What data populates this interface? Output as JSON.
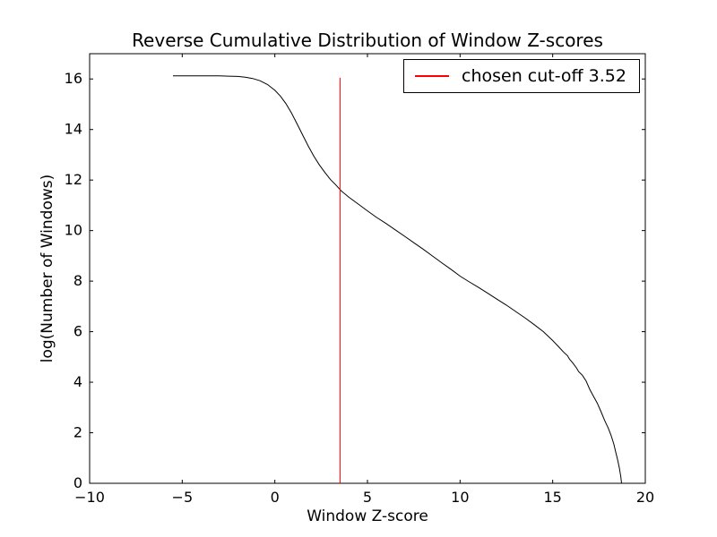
{
  "figure": {
    "background": "#ffffff"
  },
  "chart_data": {
    "type": "line",
    "title": "Reverse Cumulative Distribution of Window Z-scores",
    "xlabel": "Window Z-score",
    "ylabel": "log(Number of Windows)",
    "xlim": [
      -10,
      20
    ],
    "ylim": [
      0,
      17
    ],
    "xticks": [
      -10,
      -5,
      0,
      5,
      10,
      15,
      20
    ],
    "xtick_labels": [
      "−10",
      "−5",
      "0",
      "5",
      "10",
      "15",
      "20"
    ],
    "yticks": [
      0,
      2,
      4,
      6,
      8,
      10,
      12,
      14,
      16
    ],
    "ytick_labels": [
      "0",
      "2",
      "4",
      "6",
      "8",
      "10",
      "12",
      "14",
      "16"
    ],
    "grid": false,
    "legend": {
      "position": "upper right",
      "label": "chosen cut-off 3.52",
      "line_color": "#ff0000"
    },
    "series": [
      {
        "name": "reverse_cumulative_curve",
        "color": "#000000",
        "linewidth": 1,
        "points": [
          [
            -5.5,
            16.12
          ],
          [
            -4.5,
            16.12
          ],
          [
            -3.5,
            16.12
          ],
          [
            -3.0,
            16.12
          ],
          [
            -2.5,
            16.11
          ],
          [
            -2.0,
            16.1
          ],
          [
            -1.6,
            16.07
          ],
          [
            -1.2,
            16.02
          ],
          [
            -0.8,
            15.93
          ],
          [
            -0.4,
            15.78
          ],
          [
            0.0,
            15.55
          ],
          [
            0.3,
            15.32
          ],
          [
            0.6,
            15.02
          ],
          [
            0.9,
            14.65
          ],
          [
            1.2,
            14.22
          ],
          [
            1.5,
            13.78
          ],
          [
            1.8,
            13.35
          ],
          [
            2.1,
            12.95
          ],
          [
            2.4,
            12.6
          ],
          [
            2.7,
            12.3
          ],
          [
            3.0,
            12.02
          ],
          [
            3.3,
            11.8
          ],
          [
            3.6,
            11.56
          ],
          [
            4.0,
            11.32
          ],
          [
            4.5,
            11.05
          ],
          [
            5.0,
            10.78
          ],
          [
            5.5,
            10.52
          ],
          [
            6.0,
            10.28
          ],
          [
            6.5,
            10.03
          ],
          [
            7.0,
            9.78
          ],
          [
            7.5,
            9.52
          ],
          [
            8.0,
            9.27
          ],
          [
            8.5,
            9.0
          ],
          [
            9.0,
            8.73
          ],
          [
            9.5,
            8.47
          ],
          [
            10.0,
            8.2
          ],
          [
            10.5,
            7.97
          ],
          [
            11.0,
            7.75
          ],
          [
            11.5,
            7.52
          ],
          [
            12.0,
            7.28
          ],
          [
            12.5,
            7.05
          ],
          [
            13.0,
            6.8
          ],
          [
            13.5,
            6.55
          ],
          [
            14.0,
            6.28
          ],
          [
            14.5,
            6.0
          ],
          [
            15.0,
            5.65
          ],
          [
            15.3,
            5.42
          ],
          [
            15.6,
            5.18
          ],
          [
            15.8,
            5.05
          ],
          [
            15.9,
            4.92
          ],
          [
            16.1,
            4.75
          ],
          [
            16.3,
            4.55
          ],
          [
            16.4,
            4.42
          ],
          [
            16.6,
            4.28
          ],
          [
            16.8,
            4.05
          ],
          [
            17.0,
            3.72
          ],
          [
            17.2,
            3.45
          ],
          [
            17.4,
            3.18
          ],
          [
            17.6,
            2.85
          ],
          [
            17.8,
            2.5
          ],
          [
            18.0,
            2.18
          ],
          [
            18.15,
            1.9
          ],
          [
            18.3,
            1.55
          ],
          [
            18.4,
            1.25
          ],
          [
            18.5,
            0.95
          ],
          [
            18.6,
            0.6
          ],
          [
            18.68,
            0.25
          ],
          [
            18.72,
            0.0
          ]
        ]
      }
    ],
    "cutoff_line": {
      "x": 3.52,
      "y0": 0,
      "y1": 16.05,
      "color": "#ff0000"
    }
  }
}
